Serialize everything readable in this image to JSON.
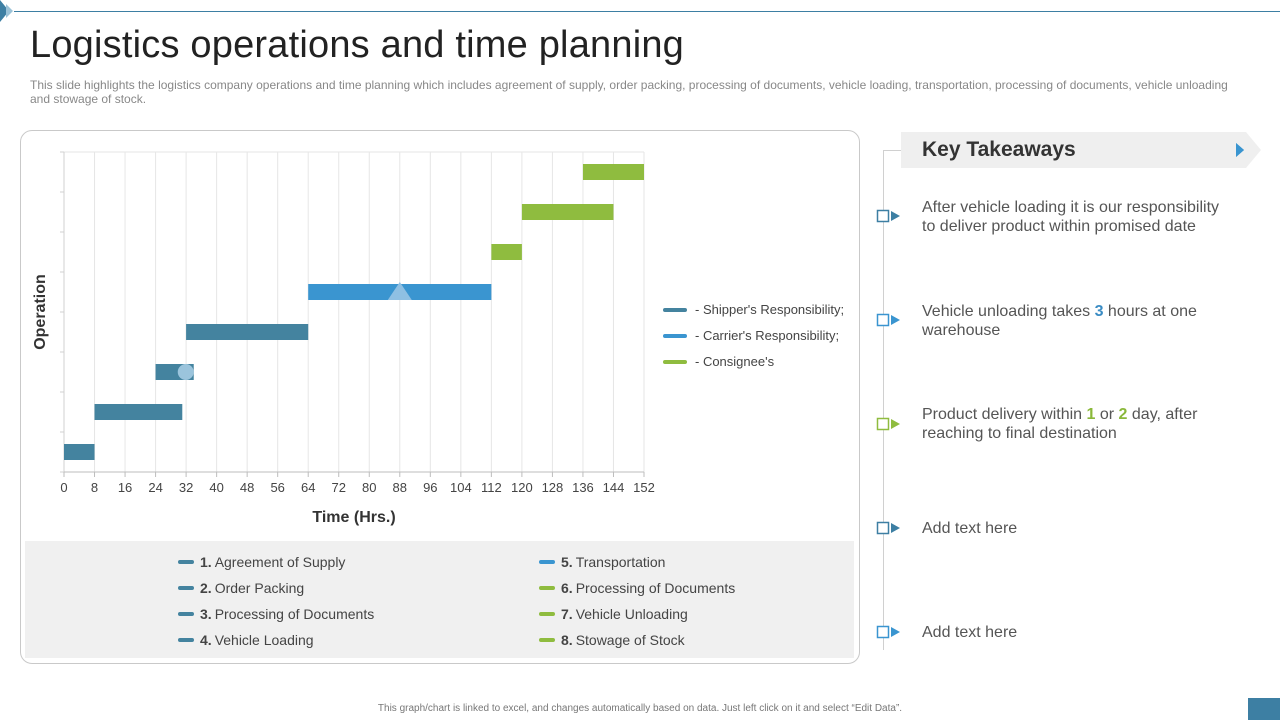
{
  "page": {
    "title": "Logistics operations and time planning",
    "subtitle": "This slide highlights the logistics company operations and time planning which includes agreement of supply, order packing, processing of documents, vehicle loading, transportation, processing of documents, vehicle unloading and stowage of stock.",
    "footer": "This graph/chart is linked to excel, and changes automatically based on data. Just left click on it and select “Edit Data”."
  },
  "colors": {
    "shipper": "#44839f",
    "carrier": "#3a95d0",
    "consignee": "#8fbc3f",
    "accent": "#3d7fa3"
  },
  "chart_data": {
    "type": "gantt",
    "xlabel": "Time (Hrs.)",
    "ylabel": "Operation",
    "xlim": [
      0,
      152
    ],
    "xticks": [
      0,
      8,
      16,
      24,
      32,
      40,
      48,
      56,
      64,
      72,
      80,
      88,
      96,
      104,
      112,
      120,
      128,
      136,
      144,
      152
    ],
    "grid": true,
    "series": [
      {
        "name": "- Shipper's Responsibility;",
        "color": "#44839f"
      },
      {
        "name": "- Carrier's Responsibility;",
        "color": "#3a95d0"
      },
      {
        "name": "- Consignee's",
        "color": "#8fbc3f"
      }
    ],
    "tasks": [
      {
        "num": "1.",
        "name": "Agreement of Supply",
        "start": 0,
        "end": 8,
        "series": 0
      },
      {
        "num": "2.",
        "name": "Order Packing",
        "start": 8,
        "end": 31,
        "series": 0
      },
      {
        "num": "3.",
        "name": "Processing of Documents",
        "start": 24,
        "end": 34,
        "series": 0
      },
      {
        "num": "4.",
        "name": "Vehicle Loading",
        "start": 32,
        "end": 64,
        "series": 0
      },
      {
        "num": "5.",
        "name": "Transportation",
        "start": 64,
        "end": 112,
        "series": 1
      },
      {
        "num": "6.",
        "name": "Processing of Documents",
        "start": 112,
        "end": 120,
        "series": 2
      },
      {
        "num": "7.",
        "name": "Vehicle Unloading",
        "start": 120,
        "end": 144,
        "series": 2
      },
      {
        "num": "8.",
        "name": "Stowage of Stock",
        "start": 136,
        "end": 152,
        "series": 2
      }
    ]
  },
  "takeaways": {
    "title": "Key Takeaways",
    "items": [
      {
        "text": "After vehicle loading it is our responsibility to deliver product within promised date"
      },
      {
        "pre": "Vehicle unloading takes ",
        "n1": "3",
        "post": " hours at one warehouse"
      },
      {
        "pre": "Product delivery within ",
        "n1": "1",
        "mid": " or ",
        "n2": "2",
        "post": " day, after reaching to final destination"
      },
      {
        "text": "Add text here"
      },
      {
        "text": "Add text here"
      }
    ]
  }
}
